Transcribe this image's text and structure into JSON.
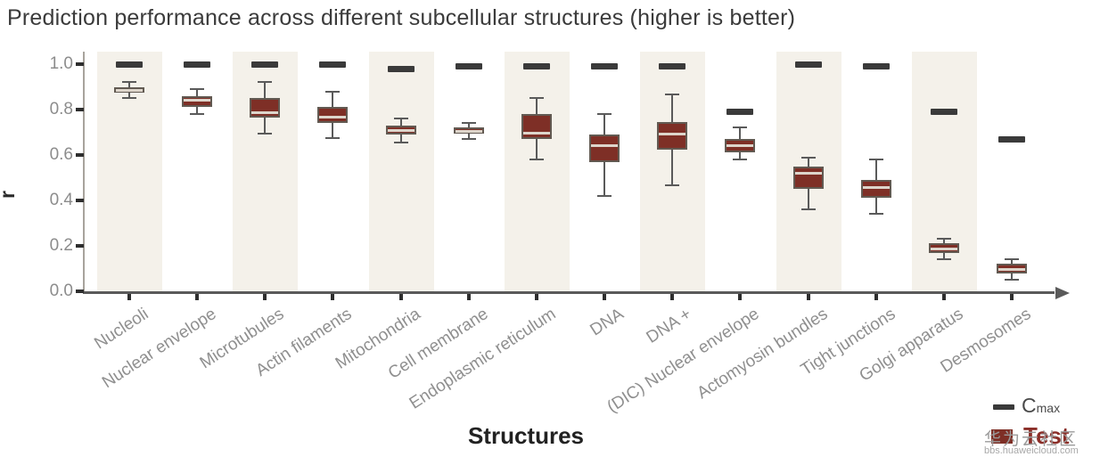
{
  "title": "Prediction performance across different subcellular structures (higher is better)",
  "watermark": {
    "text": "华为云社区",
    "url": "bbs.huaweicloud.com"
  },
  "colors": {
    "box_fill": "#7e2f26",
    "box_border": "#625a52",
    "median": "#ddd5cb",
    "whisker": "#5a5a5a",
    "cmax_dash": "#3a3a3a",
    "stripe": "#f4f1ea",
    "axis": "#5a5a5a",
    "tick_label": "#8c8c8c",
    "category_label": "#8f8f8f",
    "title_text": "#3b3b3b",
    "test_text": "#8b2e28"
  },
  "chart_data": {
    "type": "box",
    "title": "Prediction performance across different subcellular structures (higher is better)",
    "xlabel": "Structures",
    "ylabel": "r",
    "ylim": [
      0.0,
      1.05
    ],
    "yticks": [
      1.0,
      0.8,
      0.6,
      0.4,
      0.2,
      0.0
    ],
    "ytick_labels": [
      "1.0",
      "0.8",
      "0.6",
      "0.4",
      "0.2",
      "0.0"
    ],
    "grid": false,
    "legend_position": "bottom-right",
    "legend": [
      {
        "name": "Cmax",
        "main": "C",
        "sub": "max",
        "swatch": "dash",
        "color": "#3a3a3a"
      },
      {
        "name": "Test",
        "swatch": "box",
        "color": "#7e2f26"
      }
    ],
    "categories": [
      "Nucleoli",
      "Nuclear envelope",
      "Microtubules",
      "Actin filaments",
      "Mitochondria",
      "Cell membrane",
      "Endoplasmic reticulum",
      "DNA",
      "DNA +",
      "(DIC) Nuclear envelope",
      "Actomyosin bundles",
      "Tight junctions",
      "Golgi apparatus",
      "Desmosomes"
    ],
    "series": [
      {
        "name": "Test",
        "type": "boxplot",
        "boxes": [
          {
            "whisker_low": 0.85,
            "q1": 0.875,
            "median": 0.885,
            "q3": 0.9,
            "whisker_high": 0.92
          },
          {
            "whisker_low": 0.78,
            "q1": 0.81,
            "median": 0.845,
            "q3": 0.86,
            "whisker_high": 0.89
          },
          {
            "whisker_low": 0.695,
            "q1": 0.765,
            "median": 0.79,
            "q3": 0.85,
            "whisker_high": 0.92
          },
          {
            "whisker_low": 0.675,
            "q1": 0.74,
            "median": 0.77,
            "q3": 0.81,
            "whisker_high": 0.88
          },
          {
            "whisker_low": 0.655,
            "q1": 0.69,
            "median": 0.71,
            "q3": 0.73,
            "whisker_high": 0.76
          },
          {
            "whisker_low": 0.67,
            "q1": 0.695,
            "median": 0.705,
            "q3": 0.72,
            "whisker_high": 0.74
          },
          {
            "whisker_low": 0.58,
            "q1": 0.67,
            "median": 0.7,
            "q3": 0.78,
            "whisker_high": 0.85
          },
          {
            "whisker_low": 0.42,
            "q1": 0.57,
            "median": 0.645,
            "q3": 0.69,
            "whisker_high": 0.78
          },
          {
            "whisker_low": 0.465,
            "q1": 0.625,
            "median": 0.695,
            "q3": 0.745,
            "whisker_high": 0.865
          },
          {
            "whisker_low": 0.58,
            "q1": 0.61,
            "median": 0.645,
            "q3": 0.67,
            "whisker_high": 0.72
          },
          {
            "whisker_low": 0.36,
            "q1": 0.45,
            "median": 0.52,
            "q3": 0.55,
            "whisker_high": 0.59
          },
          {
            "whisker_low": 0.34,
            "q1": 0.41,
            "median": 0.46,
            "q3": 0.49,
            "whisker_high": 0.58
          },
          {
            "whisker_low": 0.14,
            "q1": 0.17,
            "median": 0.19,
            "q3": 0.21,
            "whisker_high": 0.23
          },
          {
            "whisker_low": 0.05,
            "q1": 0.08,
            "median": 0.1,
            "q3": 0.12,
            "whisker_high": 0.14
          }
        ]
      },
      {
        "name": "Cmax",
        "type": "dash-marker",
        "values": [
          1.0,
          1.0,
          1.0,
          1.0,
          0.98,
          0.99,
          0.99,
          0.99,
          0.99,
          0.79,
          1.0,
          0.99,
          0.79,
          0.67
        ]
      }
    ],
    "striped_category_indices": [
      0,
      2,
      4,
      6,
      8,
      10,
      12
    ]
  }
}
